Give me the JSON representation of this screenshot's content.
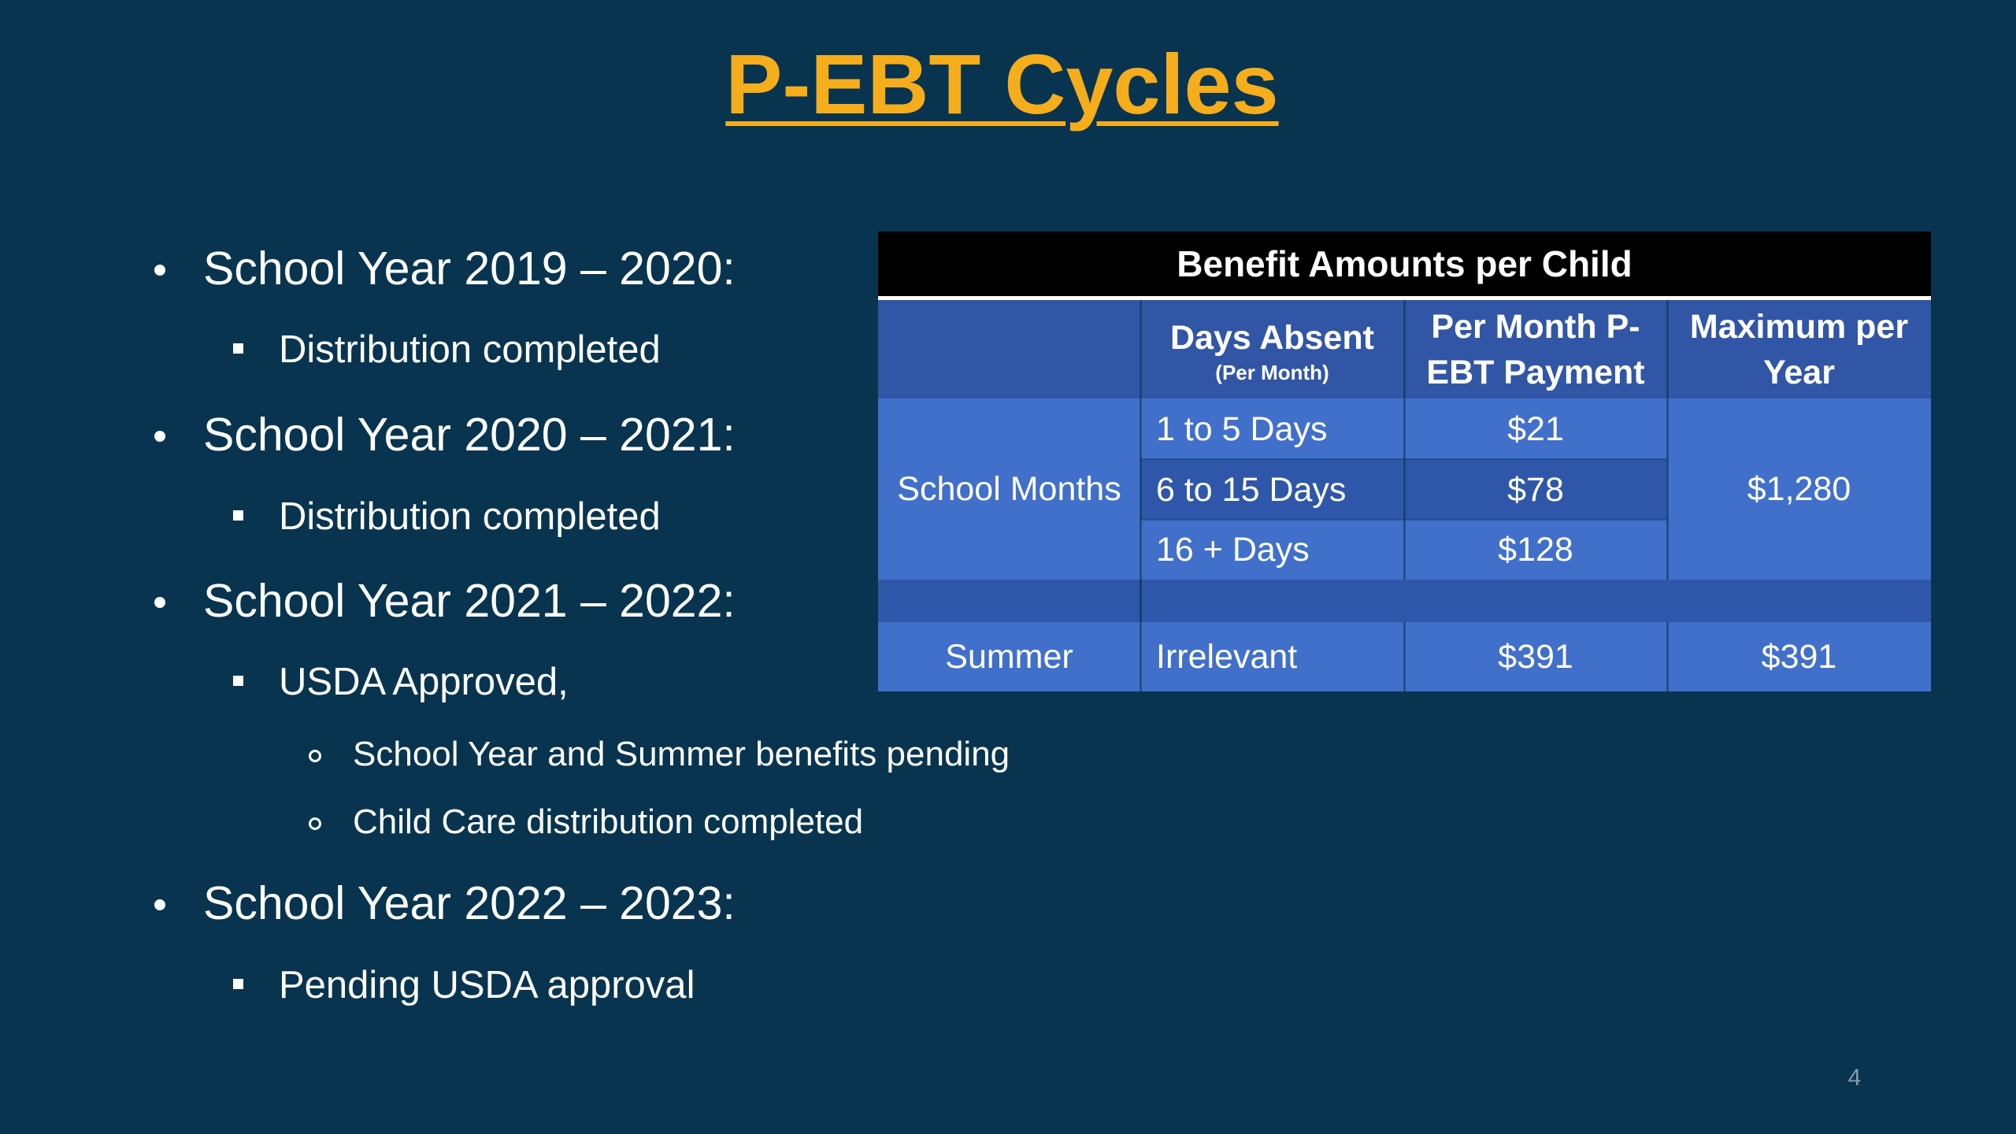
{
  "slide": {
    "title": "P-EBT Cycles",
    "page_number": "4"
  },
  "bullets": [
    {
      "level": 1,
      "text": "School Year 2019 – 2020:"
    },
    {
      "level": 2,
      "text": "Distribution completed"
    },
    {
      "level": 1,
      "text": "School Year 2020 – 2021:"
    },
    {
      "level": 2,
      "text": "Distribution completed"
    },
    {
      "level": 1,
      "text": "School Year 2021 – 2022:"
    },
    {
      "level": 2,
      "text": "USDA Approved,"
    },
    {
      "level": 3,
      "text": "School Year and Summer benefits pending"
    },
    {
      "level": 3,
      "text": "Child Care distribution completed"
    },
    {
      "level": 1,
      "text": "School Year 2022 – 2023:"
    },
    {
      "level": 2,
      "text": "Pending USDA approval"
    }
  ],
  "table": {
    "title": "Benefit Amounts per Child",
    "headers": {
      "days_absent": "Days Absent",
      "days_absent_sub": "(Per Month)",
      "per_month_line1": "Per Month P-",
      "per_month_line2": "EBT Payment",
      "maximum_line1": "Maximum per",
      "maximum_line2": "Year"
    },
    "school_months_label": "School Months",
    "school_rows": [
      {
        "days": "1 to 5 Days",
        "payment": "$21"
      },
      {
        "days": "6 to 15 Days",
        "payment": "$78"
      },
      {
        "days": "16 + Days",
        "payment": "$128"
      }
    ],
    "school_max": "$1,280",
    "summer": {
      "label": "Summer",
      "days": "Irrelevant",
      "payment": "$391",
      "max": "$391"
    }
  }
}
